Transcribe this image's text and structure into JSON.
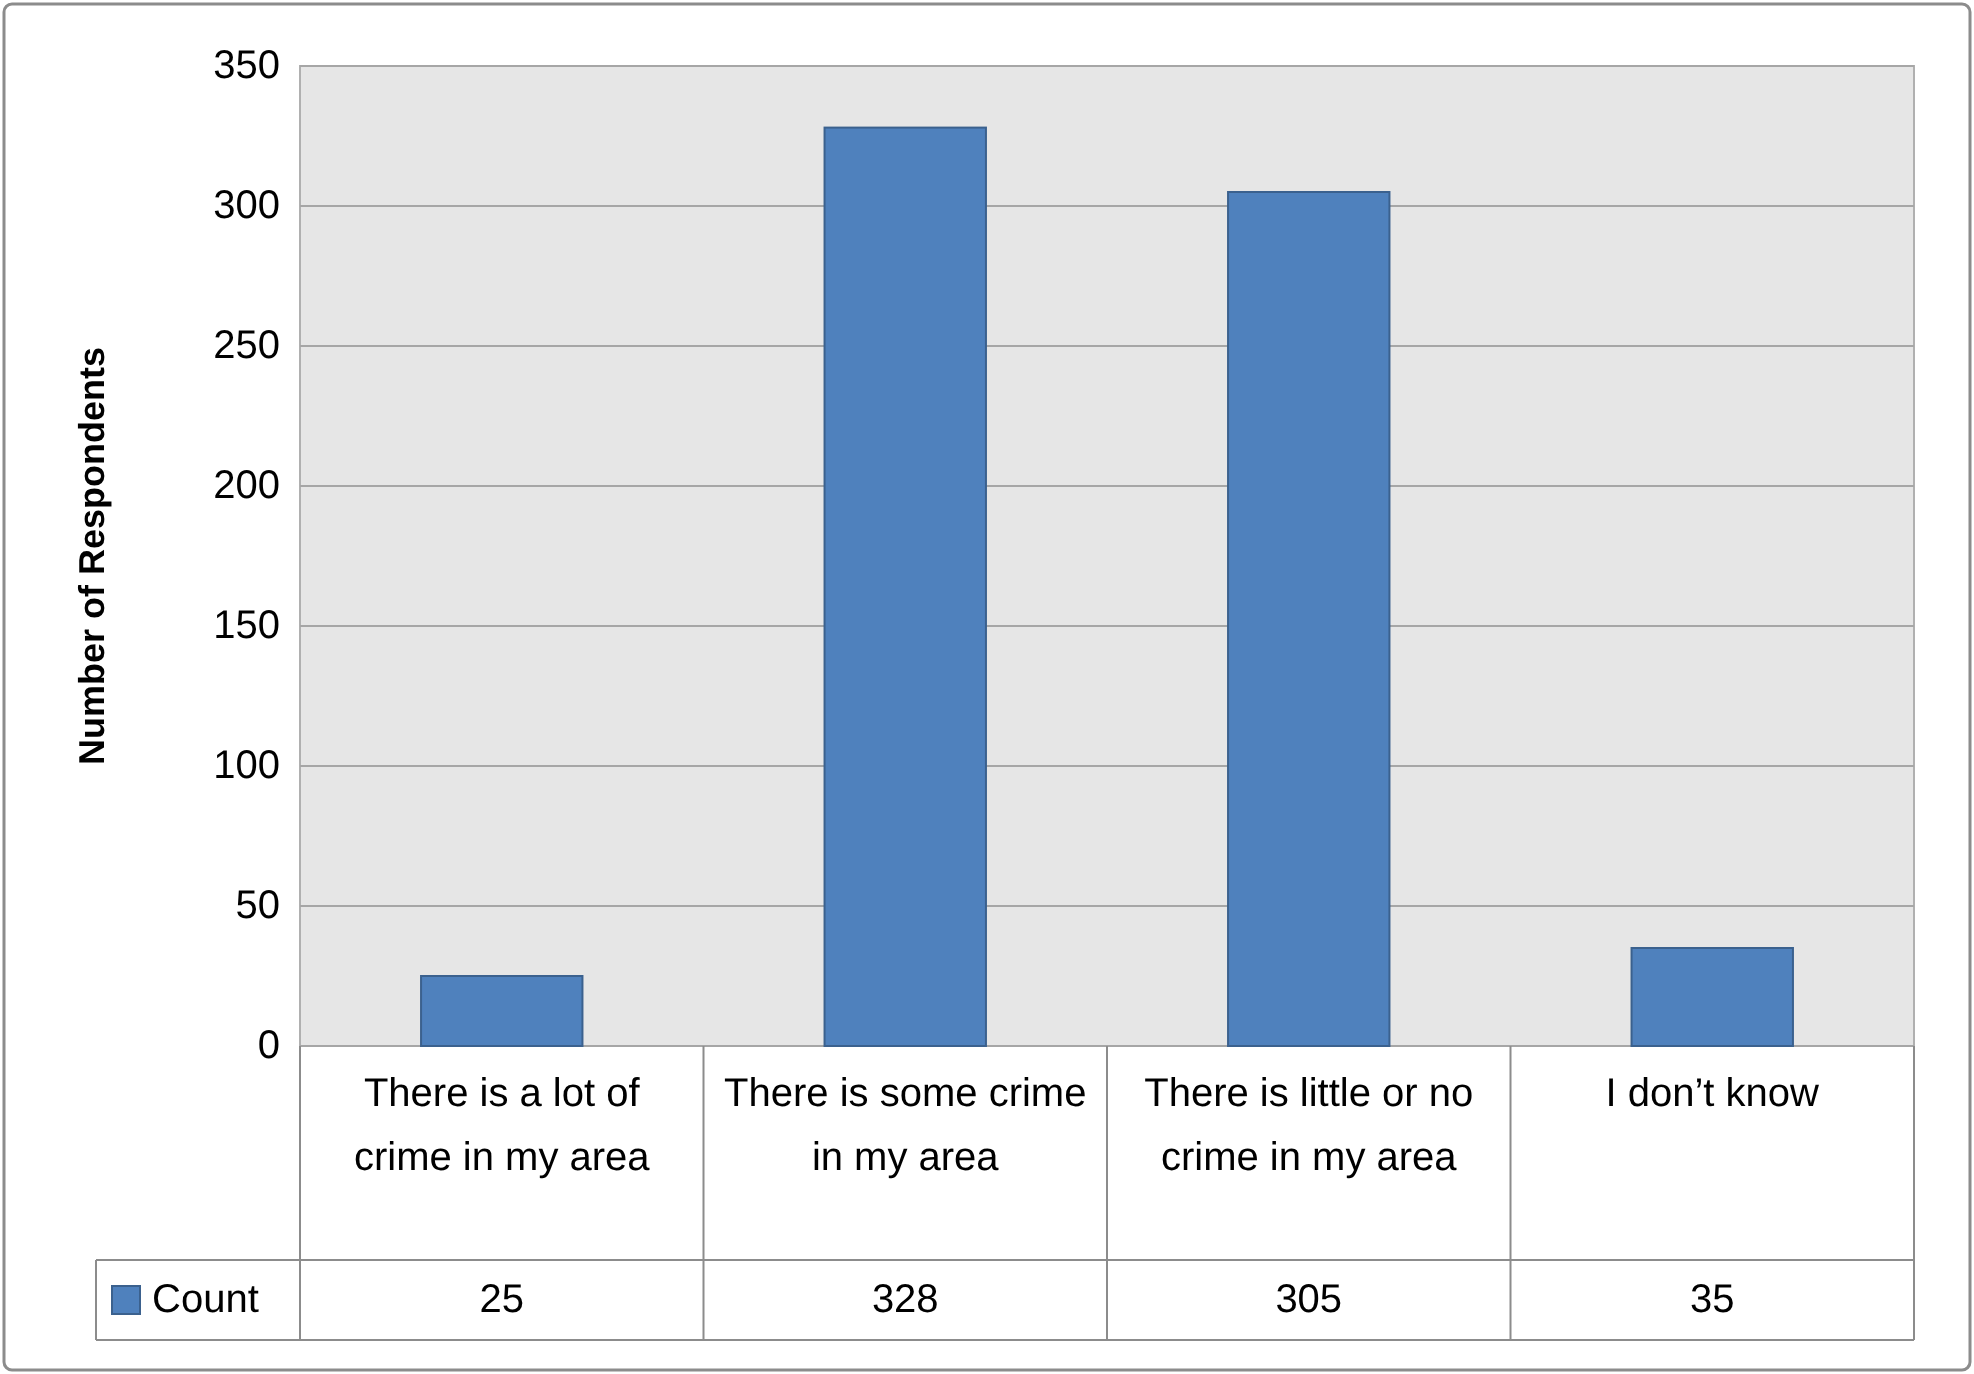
{
  "chart_data": {
    "type": "bar",
    "ylabel": "Number of Respondents",
    "categories": [
      "There is a lot of crime in my area",
      "There is some crime in my area",
      "There is little or no crime in my area",
      "I don’t know"
    ],
    "series": [
      {
        "name": "Count",
        "color": "#4f81bd",
        "values": [
          25,
          328,
          305,
          35
        ]
      }
    ],
    "ylim": [
      0,
      350
    ],
    "yticks": [
      0,
      50,
      100,
      150,
      200,
      250,
      300,
      350
    ],
    "grid": "y",
    "legend": "bottom left",
    "data_labels": true
  }
}
